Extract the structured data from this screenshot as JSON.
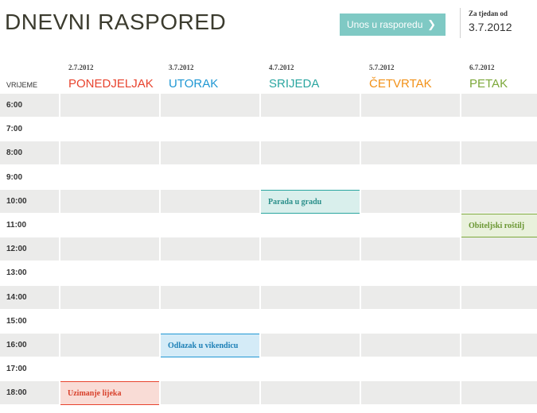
{
  "header": {
    "title": "DNEVNI RASPORED",
    "entry_button": "Unos u rasporedu",
    "week_label": "Za tjedan od",
    "week_value": "3.7.2012"
  },
  "time_header": "VRIJEME",
  "days": [
    {
      "date": "2.7.2012",
      "name": "PONEDJELJAK",
      "color": "#e8432e"
    },
    {
      "date": "3.7.2012",
      "name": "UTORAK",
      "color": "#1f97d3"
    },
    {
      "date": "4.7.2012",
      "name": "SRIJEDA",
      "color": "#2aa6a0"
    },
    {
      "date": "5.7.2012",
      "name": "ČETVRTAK",
      "color": "#f29118"
    },
    {
      "date": "6.7.2012",
      "name": "PETAK",
      "color": "#7ca83a"
    }
  ],
  "times": [
    "6:00",
    "7:00",
    "8:00",
    "9:00",
    "10:00",
    "11:00",
    "12:00",
    "13:00",
    "14:00",
    "15:00",
    "16:00",
    "17:00",
    "18:00"
  ],
  "events": [
    {
      "label": "Parada u gradu",
      "day": 2,
      "time": "10:00",
      "bg": "#d9efec",
      "border": "#2aa6a0",
      "color": "#2a8f8a"
    },
    {
      "label": "Obiteljski roštilj",
      "day": 4,
      "time": "11:00",
      "bg": "#e9f1dc",
      "border": "#7ca83a",
      "color": "#6a9632"
    },
    {
      "label": "Odlazak u vikendicu",
      "day": 1,
      "time": "16:00",
      "bg": "#d4ebf7",
      "border": "#1f97d3",
      "color": "#1c7fb6"
    },
    {
      "label": "Uzimanje lijeka",
      "day": 0,
      "time": "18:00",
      "bg": "#f9dcd6",
      "border": "#e8432e",
      "color": "#d8412c"
    }
  ]
}
